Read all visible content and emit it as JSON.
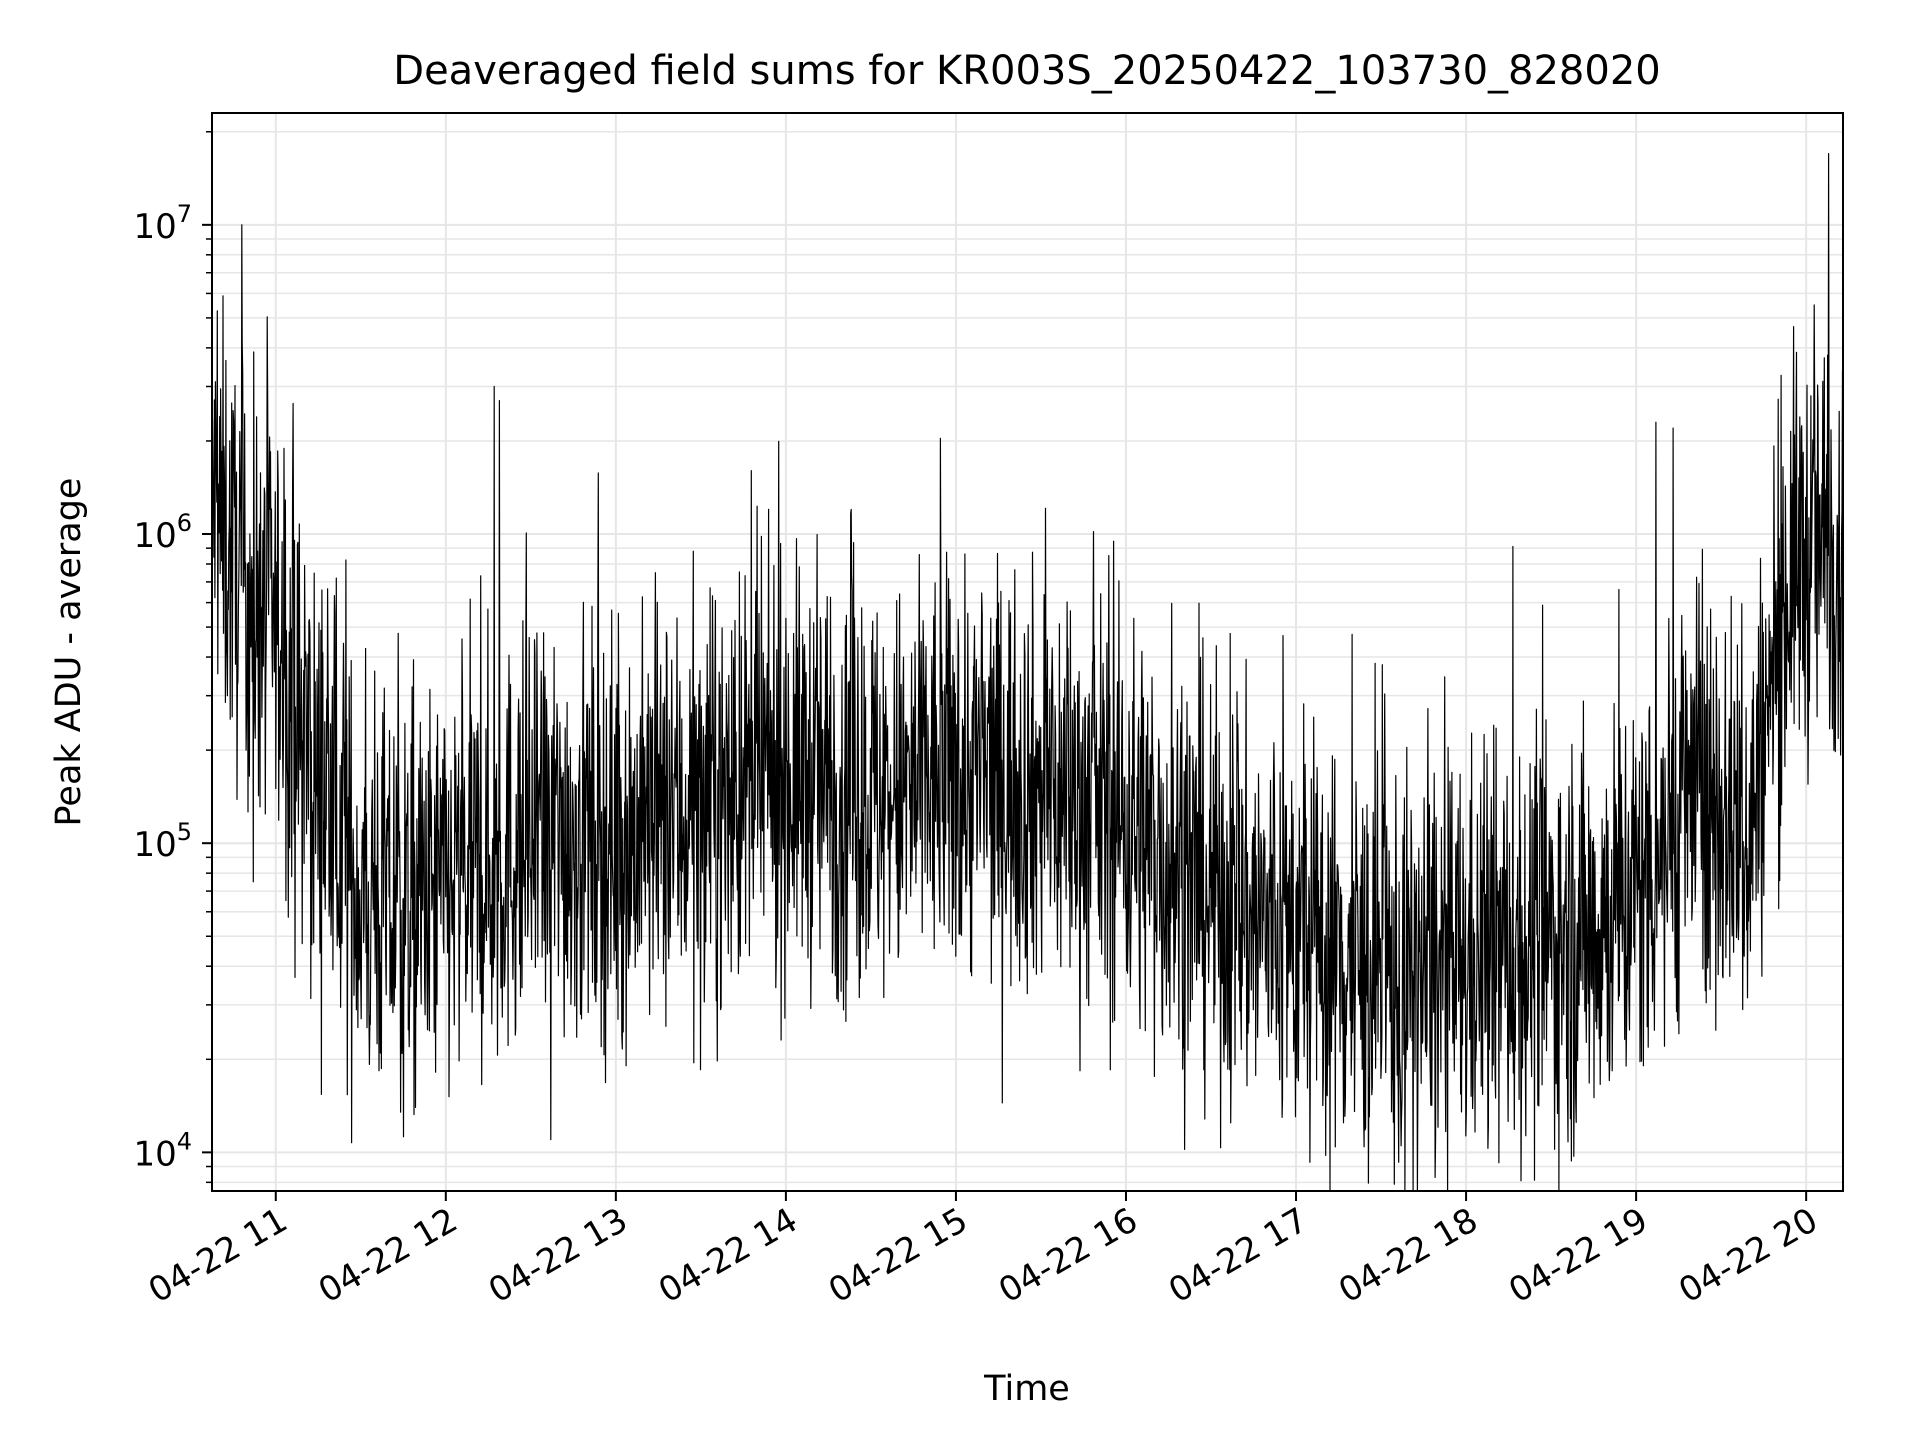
{
  "chart_data": {
    "type": "line",
    "title": "Deaveraged field sums for KR003S_20250422_103730_828020",
    "xlabel": "Time",
    "ylabel": "Peak ADU - average",
    "x_range": [
      "2025-04-22 10:37:30",
      "2025-04-22 20:13:00"
    ],
    "ylim": [
      7500,
      23000000
    ],
    "yscale": "log",
    "grid": true,
    "grid_minor": true,
    "line_color": "#000000",
    "grid_color": "#e6e6e6",
    "x_ticks": [
      {
        "time": "2025-04-22 11:00",
        "label": "04-22 11"
      },
      {
        "time": "2025-04-22 12:00",
        "label": "04-22 12"
      },
      {
        "time": "2025-04-22 13:00",
        "label": "04-22 13"
      },
      {
        "time": "2025-04-22 14:00",
        "label": "04-22 14"
      },
      {
        "time": "2025-04-22 15:00",
        "label": "04-22 15"
      },
      {
        "time": "2025-04-22 16:00",
        "label": "04-22 16"
      },
      {
        "time": "2025-04-22 17:00",
        "label": "04-22 17"
      },
      {
        "time": "2025-04-22 18:00",
        "label": "04-22 18"
      },
      {
        "time": "2025-04-22 19:00",
        "label": "04-22 19"
      },
      {
        "time": "2025-04-22 20:00",
        "label": "04-22 20"
      }
    ],
    "y_ticks": [
      {
        "value": 10000,
        "base": "10",
        "exp": "4"
      },
      {
        "value": 100000,
        "base": "10",
        "exp": "5"
      },
      {
        "value": 1000000,
        "base": "10",
        "exp": "6"
      },
      {
        "value": 10000000,
        "base": "10",
        "exp": "7"
      }
    ],
    "series": [
      {
        "x": [
          "2025-04-22 10:38",
          "2025-04-22 10:45",
          "2025-04-22 10:50",
          "2025-04-22 11:00",
          "2025-04-22 11:10",
          "2025-04-22 11:20",
          "2025-04-22 11:30",
          "2025-04-22 11:45",
          "2025-04-22 12:00",
          "2025-04-22 12:20",
          "2025-04-22 12:40",
          "2025-04-22 13:00",
          "2025-04-22 13:20",
          "2025-04-22 13:40",
          "2025-04-22 14:00",
          "2025-04-22 14:20",
          "2025-04-22 14:40",
          "2025-04-22 15:00",
          "2025-04-22 15:20",
          "2025-04-22 15:40",
          "2025-04-22 16:00",
          "2025-04-22 16:20",
          "2025-04-22 16:40",
          "2025-04-22 17:00",
          "2025-04-22 17:20",
          "2025-04-22 17:40",
          "2025-04-22 18:00",
          "2025-04-22 18:20",
          "2025-04-22 18:40",
          "2025-04-22 19:00",
          "2025-04-22 19:20",
          "2025-04-22 19:40",
          "2025-04-22 19:55",
          "2025-04-22 20:05",
          "2025-04-22 20:12"
        ],
        "values": [
          1300000,
          800000,
          650000,
          500000,
          200000,
          120000,
          65000,
          60000,
          70000,
          90000,
          110000,
          100000,
          120000,
          140000,
          170000,
          150000,
          140000,
          170000,
          160000,
          140000,
          120000,
          80000,
          60000,
          50000,
          40000,
          35000,
          40000,
          45000,
          50000,
          70000,
          150000,
          110000,
          800000,
          900000,
          1000000
        ]
      }
    ],
    "spikes": [
      {
        "time": "2025-04-22 10:48",
        "value": 10000000
      },
      {
        "time": "2025-04-22 12:17",
        "value": 3000000
      },
      {
        "time": "2025-04-22 12:19",
        "value": 2700000
      },
      {
        "time": "2025-04-22 20:08",
        "value": 17000000
      },
      {
        "time": "2025-04-22 12:37",
        "value": 11000
      },
      {
        "time": "2025-04-22 11:44",
        "value": 13500
      },
      {
        "time": "2025-04-22 10:52",
        "value": 75000
      },
      {
        "time": "2025-04-22 17:37",
        "value": 10500
      },
      {
        "time": "2025-04-22 14:23",
        "value": 1200000
      },
      {
        "time": "2025-04-22 19:07",
        "value": 2300000
      },
      {
        "time": "2025-04-22 19:13",
        "value": 2200000
      },
      {
        "time": "2025-04-22 20:03",
        "value": 2500000
      }
    ]
  }
}
